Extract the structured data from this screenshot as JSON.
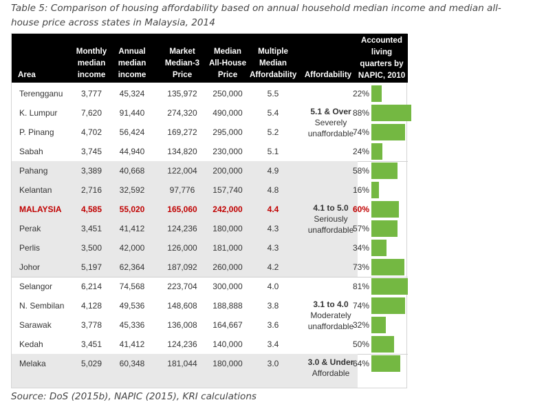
{
  "caption": "Table 5: Comparison of housing affordability based on annual household median income and median all-house price across states in Malaysia, 2014",
  "headers": {
    "area": "Area",
    "monthly": "Monthly\nmedian\nincome",
    "annual": "Annual\nmedian\nincome",
    "market": "Market\nMedian-3\nPrice",
    "median_price": "Median\nAll-House\nPrice",
    "multiple": "Multiple\nMedian\nAffordability",
    "affordability": "Affordability",
    "napic": "Accounted\nliving\nquarters by\nNAPIC, 2010"
  },
  "groups": [
    {
      "title": "5.1 & Over",
      "subtitle": "Severely\nunaffordable",
      "shaded": false,
      "rows": [
        {
          "area": "Terengganu",
          "monthly": "3,777",
          "annual": "45,324",
          "market": "135,972",
          "median": "250,000",
          "multiple": "5.5",
          "pct": "22%",
          "value": 22
        },
        {
          "area": "K. Lumpur",
          "monthly": "7,620",
          "annual": "91,440",
          "market": "274,320",
          "median": "490,000",
          "multiple": "5.4",
          "pct": "88%",
          "value": 88
        },
        {
          "area": "P. Pinang",
          "monthly": "4,702",
          "annual": "56,424",
          "market": "169,272",
          "median": "295,000",
          "multiple": "5.2",
          "pct": "74%",
          "value": 74
        },
        {
          "area": "Sabah",
          "monthly": "3,745",
          "annual": "44,940",
          "market": "134,820",
          "median": "230,000",
          "multiple": "5.1",
          "pct": "24%",
          "value": 24
        }
      ]
    },
    {
      "title": "4.1 to 5.0",
      "subtitle": "Seriously\nunaffordable",
      "shaded": true,
      "rows": [
        {
          "area": "Pahang",
          "monthly": "3,389",
          "annual": "40,668",
          "market": "122,004",
          "median": "200,000",
          "multiple": "4.9",
          "pct": "58%",
          "value": 58
        },
        {
          "area": "Kelantan",
          "monthly": "2,716",
          "annual": "32,592",
          "market": "97,776",
          "median": "157,740",
          "multiple": "4.8",
          "pct": "16%",
          "value": 16
        },
        {
          "area": "MALAYSIA",
          "monthly": "4,585",
          "annual": "55,020",
          "market": "165,060",
          "median": "242,000",
          "multiple": "4.4",
          "pct": "60%",
          "value": 60,
          "highlight": true
        },
        {
          "area": "Perak",
          "monthly": "3,451",
          "annual": "41,412",
          "market": "124,236",
          "median": "180,000",
          "multiple": "4.3",
          "pct": "57%",
          "value": 57
        },
        {
          "area": "Perlis",
          "monthly": "3,500",
          "annual": "42,000",
          "market": "126,000",
          "median": "181,000",
          "multiple": "4.3",
          "pct": "34%",
          "value": 34
        },
        {
          "area": "Johor",
          "monthly": "5,197",
          "annual": "62,364",
          "market": "187,092",
          "median": "260,000",
          "multiple": "4.2",
          "pct": "73%",
          "value": 73
        }
      ]
    },
    {
      "title": "3.1 to 4.0",
      "subtitle": "Moderately\nunaffordable",
      "shaded": false,
      "rows": [
        {
          "area": "Selangor",
          "monthly": "6,214",
          "annual": "74,568",
          "market": "223,704",
          "median": "300,000",
          "multiple": "4.0",
          "pct": "81%",
          "value": 81
        },
        {
          "area": "N. Sembilan",
          "monthly": "4,128",
          "annual": "49,536",
          "market": "148,608",
          "median": "188,888",
          "multiple": "3.8",
          "pct": "74%",
          "value": 74
        },
        {
          "area": "Sarawak",
          "monthly": "3,778",
          "annual": "45,336",
          "market": "136,008",
          "median": "164,667",
          "multiple": "3.6",
          "pct": "32%",
          "value": 32
        },
        {
          "area": "Kedah",
          "monthly": "3,451",
          "annual": "41,412",
          "market": "124,236",
          "median": "140,000",
          "multiple": "3.4",
          "pct": "50%",
          "value": 50
        }
      ]
    },
    {
      "title": "3.0 & Under",
      "subtitle": "Affordable",
      "shaded": true,
      "rows": [
        {
          "area": "Melaka",
          "monthly": "5,029",
          "annual": "60,348",
          "market": "181,044",
          "median": "180,000",
          "multiple": "3.0",
          "pct": "64%",
          "value": 64
        }
      ]
    }
  ],
  "source": "Source: DoS (2015b), NAPIC (2015), KRI calculations",
  "colors": {
    "bar": "#74b842",
    "highlight": "#c00000",
    "header_bg": "#000000",
    "shade": "#e8e8e8"
  }
}
